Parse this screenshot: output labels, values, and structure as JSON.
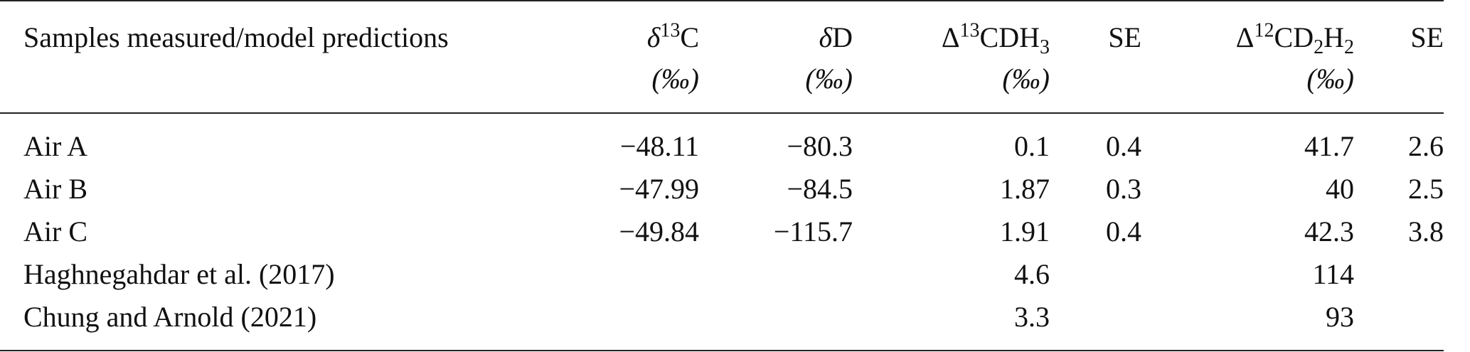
{
  "table": {
    "header": [
      [
        "Samples measured/model predictions"
      ],
      [
        "δ",
        "13",
        "C",
        "(‰)"
      ],
      [
        "δ",
        "D",
        "(‰)"
      ],
      [
        "Δ",
        "13",
        "CDH",
        "3",
        "(‰)"
      ],
      [
        "SE"
      ],
      [
        "Δ",
        "12",
        "CD",
        "2",
        "H",
        "2",
        "(‰)"
      ],
      [
        "SE"
      ]
    ],
    "rows": [
      [
        "Air A",
        "−48.11",
        "−80.3",
        "0.1",
        "0.4",
        "41.7",
        "2.6"
      ],
      [
        "Air B",
        "−47.99",
        "−84.5",
        "1.87",
        "0.3",
        "40",
        "2.5"
      ],
      [
        "Air C",
        "−49.84",
        "−115.7",
        "1.91",
        "0.4",
        "42.3",
        "3.8"
      ],
      [
        "Haghnegahdar et al. (2017)",
        null,
        null,
        "4.6",
        null,
        "114",
        null
      ],
      [
        "Chung and Arnold (2021)",
        null,
        null,
        "3.3",
        null,
        "93",
        null
      ]
    ]
  }
}
